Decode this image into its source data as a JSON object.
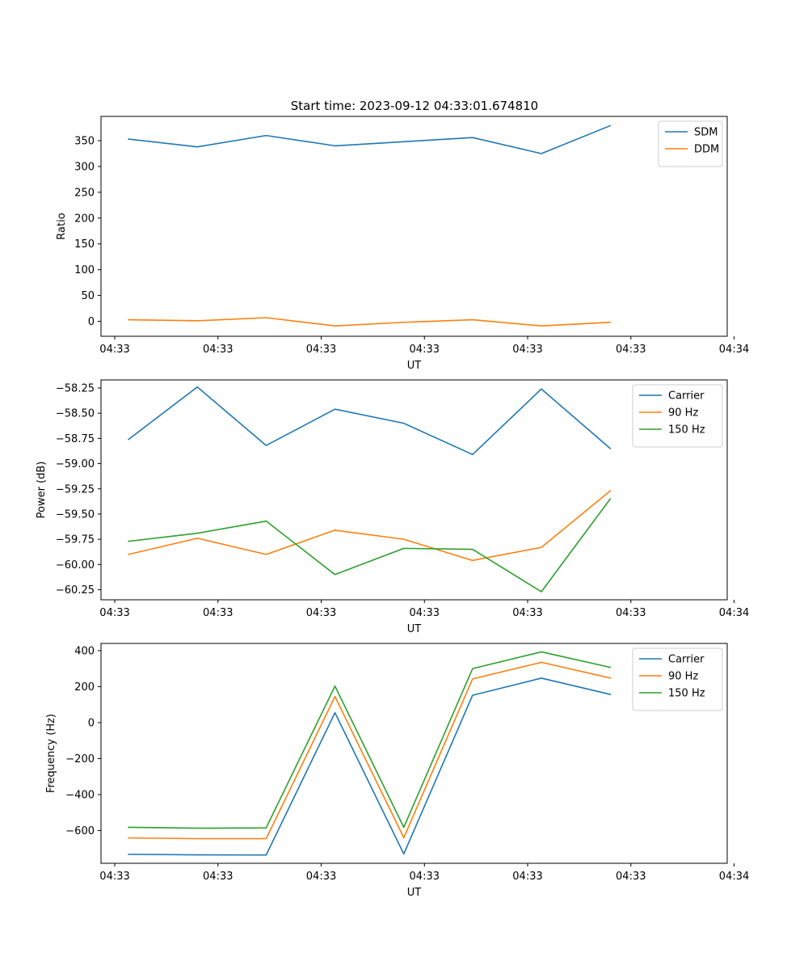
{
  "figure": {
    "title": "Start time: 2023-09-12 04:33:01.674810"
  },
  "chart_data": [
    {
      "type": "line",
      "xlabel": "UT",
      "ylabel": "Ratio",
      "xlim": [
        -0.4,
        8.7
      ],
      "ylim": [
        -29,
        397
      ],
      "xticks": [
        {
          "v": -0.2,
          "label": "04:33"
        },
        {
          "v": 1.3,
          "label": "04:33"
        },
        {
          "v": 2.8,
          "label": "04:33"
        },
        {
          "v": 4.3,
          "label": "04:33"
        },
        {
          "v": 5.8,
          "label": "04:33"
        },
        {
          "v": 7.3,
          "label": "04:33"
        },
        {
          "v": 8.8,
          "label": "04:34"
        }
      ],
      "yticks": [
        0,
        50,
        100,
        150,
        200,
        250,
        300,
        350
      ],
      "x": [
        0,
        1,
        2,
        3,
        4,
        5,
        6,
        7
      ],
      "legend": "top-right",
      "series": [
        {
          "name": "SDM",
          "color": "#1f77b4",
          "values": [
            353,
            338,
            360,
            340,
            348,
            356,
            325,
            379
          ]
        },
        {
          "name": "DDM",
          "color": "#ff7f0e",
          "values": [
            3,
            1,
            7,
            -9,
            -2,
            3,
            -9,
            -2
          ]
        }
      ]
    },
    {
      "type": "line",
      "xlabel": "UT",
      "ylabel": "Power (dB)",
      "xlim": [
        -0.4,
        8.7
      ],
      "ylim": [
        -60.35,
        -58.17
      ],
      "xticks": [
        {
          "v": -0.2,
          "label": "04:33"
        },
        {
          "v": 1.3,
          "label": "04:33"
        },
        {
          "v": 2.8,
          "label": "04:33"
        },
        {
          "v": 4.3,
          "label": "04:33"
        },
        {
          "v": 5.8,
          "label": "04:33"
        },
        {
          "v": 7.3,
          "label": "04:33"
        },
        {
          "v": 8.8,
          "label": "04:34"
        }
      ],
      "yticks": [
        -58.25,
        -58.5,
        -58.75,
        -59.0,
        -59.25,
        -59.5,
        -59.75,
        -60.0,
        -60.25
      ],
      "ytick_labels": [
        "−58.25",
        "−58.50",
        "−58.75",
        "−59.00",
        "−59.25",
        "−59.50",
        "−59.75",
        "−60.00",
        "−60.25"
      ],
      "x": [
        0,
        1,
        2,
        3,
        4,
        5,
        6,
        7
      ],
      "legend": "top-right",
      "series": [
        {
          "name": "Carrier",
          "color": "#1f77b4",
          "values": [
            -58.76,
            -58.24,
            -58.82,
            -58.46,
            -58.6,
            -58.91,
            -58.26,
            -58.85
          ]
        },
        {
          "name": "90 Hz",
          "color": "#ff7f0e",
          "values": [
            -59.9,
            -59.74,
            -59.9,
            -59.66,
            -59.75,
            -59.96,
            -59.83,
            -59.27
          ]
        },
        {
          "name": "150 Hz",
          "color": "#2ca02c",
          "values": [
            -59.77,
            -59.69,
            -59.57,
            -60.1,
            -59.84,
            -59.85,
            -60.27,
            -59.35
          ]
        }
      ]
    },
    {
      "type": "line",
      "xlabel": "UT",
      "ylabel": "Frequency (Hz)",
      "xlim": [
        -0.4,
        8.7
      ],
      "ylim": [
        -782,
        440
      ],
      "xticks": [
        {
          "v": -0.2,
          "label": "04:33"
        },
        {
          "v": 1.3,
          "label": "04:33"
        },
        {
          "v": 2.8,
          "label": "04:33"
        },
        {
          "v": 4.3,
          "label": "04:33"
        },
        {
          "v": 5.8,
          "label": "04:33"
        },
        {
          "v": 7.3,
          "label": "04:33"
        },
        {
          "v": 8.8,
          "label": "04:34"
        }
      ],
      "yticks": [
        400,
        200,
        0,
        -200,
        -400,
        -600
      ],
      "ytick_labels": [
        "400",
        "200",
        "0",
        "−200",
        "−400",
        "−600"
      ],
      "x": [
        0,
        1,
        2,
        3,
        4,
        5,
        6,
        7
      ],
      "legend": "top-right",
      "series": [
        {
          "name": "Carrier",
          "color": "#1f77b4",
          "values": [
            -732,
            -735,
            -736,
            55,
            -730,
            152,
            247,
            157
          ]
        },
        {
          "name": "90 Hz",
          "color": "#ff7f0e",
          "values": [
            -641,
            -645,
            -645,
            145,
            -640,
            243,
            335,
            248
          ]
        },
        {
          "name": "150 Hz",
          "color": "#2ca02c",
          "values": [
            -582,
            -587,
            -585,
            203,
            -582,
            300,
            393,
            307
          ]
        }
      ]
    }
  ]
}
